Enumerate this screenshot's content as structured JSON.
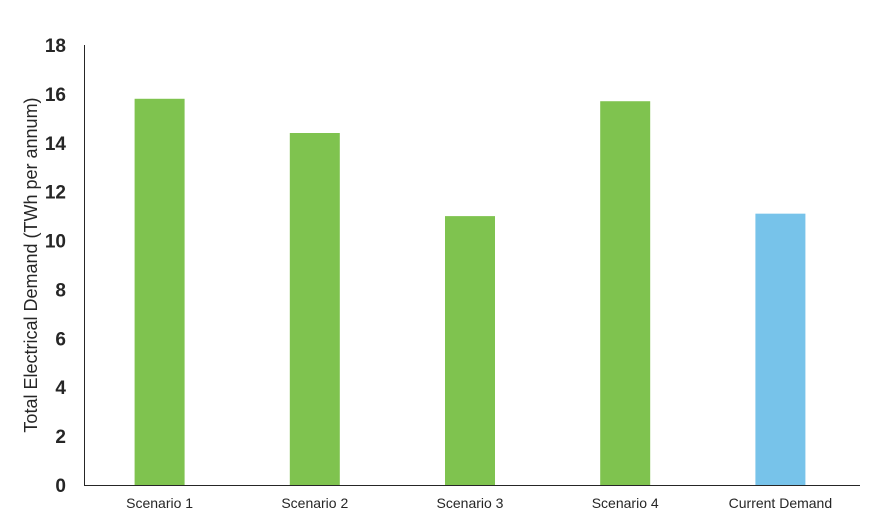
{
  "chart_data": {
    "type": "bar",
    "title": "",
    "xlabel": "",
    "ylabel": "Total Electrical Demand  (TWh per annum)",
    "ylim": [
      0,
      18
    ],
    "yticks": [
      0,
      2,
      4,
      6,
      8,
      10,
      12,
      14,
      16,
      18
    ],
    "grid": false,
    "legend": "none",
    "categories": [
      "Scenario 1",
      "Scenario 2",
      "Scenario 3",
      "Scenario 4",
      "Current Demand"
    ],
    "values": [
      15.8,
      14.4,
      11.0,
      15.7,
      11.1
    ],
    "colors": [
      "#7fc34f",
      "#7fc34f",
      "#7fc34f",
      "#7fc34f",
      "#77c3ea"
    ]
  }
}
